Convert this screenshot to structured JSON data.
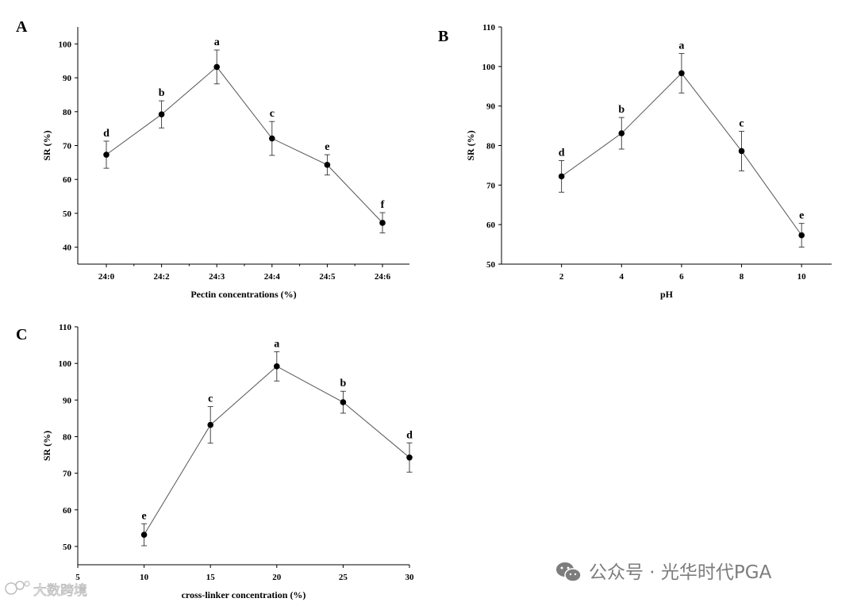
{
  "chart_data": [
    {
      "panel": "A",
      "type": "line",
      "xlabel": "Pectin concentrations (%)",
      "ylabel": "SR (%)",
      "categories": [
        "24:0",
        "24:2",
        "24:3",
        "24:4",
        "24:5",
        "24:6"
      ],
      "values": [
        67.3,
        79.2,
        93.2,
        72.1,
        64.3,
        47.2
      ],
      "errors": [
        4.0,
        4.0,
        5.0,
        5.0,
        3.0,
        3.0
      ],
      "sig_letters": [
        "d",
        "b",
        "a",
        "c",
        "e",
        "f"
      ],
      "yticks": [
        40,
        50,
        60,
        70,
        80,
        90,
        100
      ],
      "ylim": [
        35,
        105
      ]
    },
    {
      "panel": "B",
      "type": "line",
      "xlabel": "pH",
      "ylabel": "SR (%)",
      "x": [
        2,
        4,
        6,
        8,
        10
      ],
      "values": [
        72.2,
        83.1,
        98.3,
        78.6,
        57.3
      ],
      "errors": [
        4.0,
        4.0,
        5.0,
        5.0,
        3.0
      ],
      "sig_letters": [
        "d",
        "b",
        "a",
        "c",
        "e"
      ],
      "xticks": [
        2,
        4,
        6,
        8,
        10
      ],
      "xlim": [
        0,
        11
      ],
      "yticks": [
        50,
        60,
        70,
        80,
        90,
        100,
        110
      ],
      "ylim": [
        50,
        110
      ]
    },
    {
      "panel": "C",
      "type": "line",
      "xlabel": "cross-linker concentration (%)",
      "ylabel": "SR (%)",
      "x": [
        10,
        15,
        20,
        25,
        30
      ],
      "values": [
        53.2,
        83.2,
        99.2,
        89.4,
        74.3
      ],
      "errors": [
        3.0,
        5.0,
        4.0,
        3.0,
        4.0
      ],
      "sig_letters": [
        "e",
        "c",
        "a",
        "b",
        "d"
      ],
      "xticks": [
        5,
        10,
        15,
        20,
        25,
        30
      ],
      "xlim": [
        5,
        30
      ],
      "yticks": [
        50,
        60,
        70,
        80,
        90,
        100,
        110
      ],
      "ylim": [
        45,
        110
      ]
    }
  ],
  "watermarks": {
    "left": "大数跨境",
    "right": "公众号 · 光华时代PGA"
  }
}
